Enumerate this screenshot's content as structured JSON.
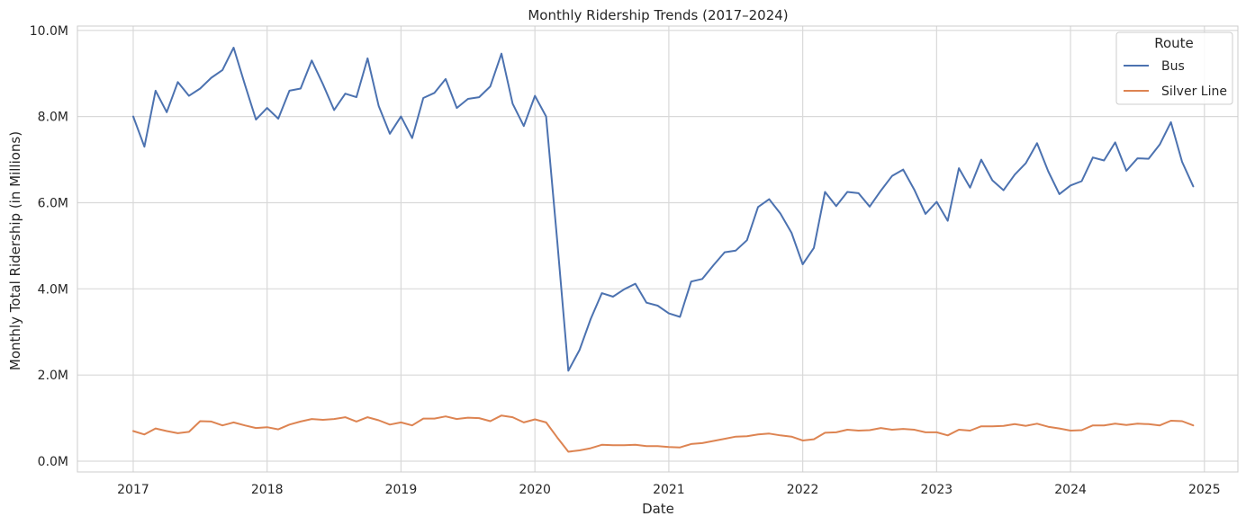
{
  "chart_data": {
    "type": "line",
    "title": "Monthly Ridership Trends (2017–2024)",
    "xlabel": "Date",
    "ylabel": "Monthly Total Ridership (in Millions)",
    "ylim": [
      -0.25,
      10.1
    ],
    "xlim": [
      "2016-08",
      "2025-04"
    ],
    "grid": true,
    "legend_position": "top-right",
    "legend_title": "Route",
    "x_tick_labels": [
      "2017",
      "2018",
      "2019",
      "2020",
      "2021",
      "2022",
      "2023",
      "2024",
      "2025"
    ],
    "y_tick_labels": [
      "0.0M",
      "2.0M",
      "4.0M",
      "6.0M",
      "8.0M",
      "10.0M"
    ],
    "y_ticks": [
      0,
      2,
      4,
      6,
      8,
      10
    ],
    "x_start": "2017-01",
    "x_step": "1 month",
    "series": [
      {
        "name": "Bus",
        "color": "#4c72b0",
        "values": [
          8.0,
          7.3,
          8.6,
          8.1,
          8.8,
          8.48,
          8.65,
          8.9,
          9.08,
          9.6,
          8.75,
          7.93,
          8.2,
          7.95,
          8.6,
          8.65,
          9.3,
          8.75,
          8.15,
          8.53,
          8.45,
          9.35,
          8.25,
          7.6,
          8.0,
          7.5,
          8.43,
          8.55,
          8.87,
          8.2,
          8.41,
          8.45,
          8.7,
          9.46,
          8.3,
          7.78,
          8.48,
          8.0,
          5.1,
          2.1,
          2.58,
          3.3,
          3.9,
          3.82,
          3.99,
          4.12,
          3.68,
          3.61,
          3.43,
          3.35,
          4.17,
          4.23,
          4.55,
          4.85,
          4.89,
          5.13,
          5.9,
          6.08,
          5.75,
          5.3,
          4.57,
          4.95,
          6.25,
          5.92,
          6.25,
          6.22,
          5.91,
          6.28,
          6.62,
          6.77,
          6.3,
          5.74,
          6.02,
          5.58,
          6.8,
          6.35,
          7.0,
          6.52,
          6.29,
          6.65,
          6.92,
          7.38,
          6.73,
          6.2,
          6.4,
          6.5,
          7.05,
          6.98,
          7.4,
          6.74,
          7.03,
          7.02,
          7.35,
          7.87,
          6.95,
          6.38
        ]
      },
      {
        "name": "Silver Line",
        "color": "#dd8452",
        "values": [
          0.7,
          0.62,
          0.76,
          0.7,
          0.65,
          0.68,
          0.93,
          0.92,
          0.83,
          0.9,
          0.83,
          0.77,
          0.79,
          0.74,
          0.85,
          0.92,
          0.98,
          0.96,
          0.98,
          1.02,
          0.92,
          1.02,
          0.95,
          0.85,
          0.9,
          0.83,
          0.99,
          0.99,
          1.04,
          0.98,
          1.01,
          1.0,
          0.93,
          1.06,
          1.02,
          0.9,
          0.97,
          0.9,
          0.55,
          0.22,
          0.25,
          0.3,
          0.38,
          0.37,
          0.37,
          0.38,
          0.35,
          0.35,
          0.33,
          0.32,
          0.4,
          0.42,
          0.47,
          0.52,
          0.57,
          0.58,
          0.62,
          0.64,
          0.6,
          0.57,
          0.48,
          0.51,
          0.66,
          0.67,
          0.73,
          0.71,
          0.72,
          0.77,
          0.73,
          0.75,
          0.73,
          0.67,
          0.67,
          0.6,
          0.73,
          0.71,
          0.81,
          0.81,
          0.82,
          0.86,
          0.82,
          0.87,
          0.8,
          0.76,
          0.71,
          0.72,
          0.83,
          0.83,
          0.87,
          0.84,
          0.87,
          0.86,
          0.83,
          0.94,
          0.93,
          0.83
        ]
      }
    ]
  }
}
